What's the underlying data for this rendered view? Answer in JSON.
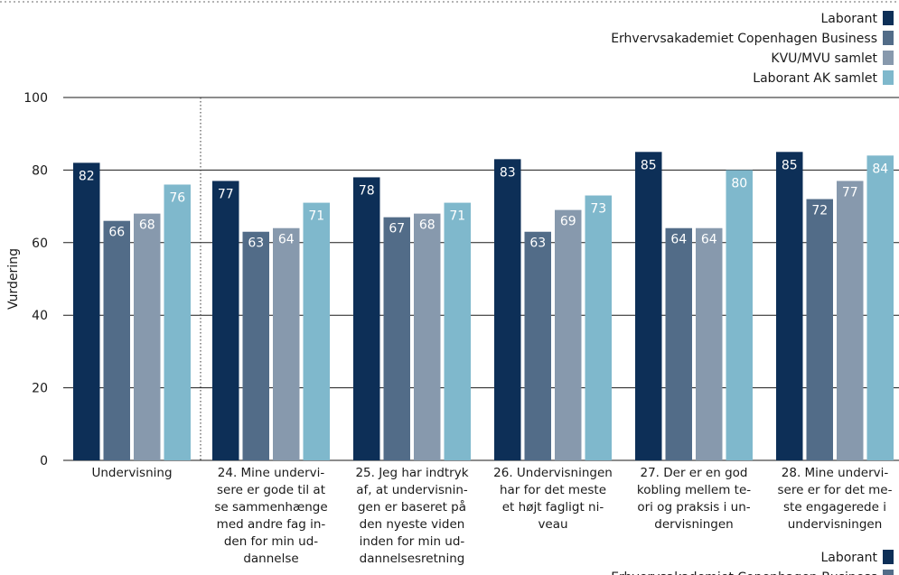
{
  "chart_data": {
    "type": "bar",
    "ylabel": "Vurdering",
    "ylim": [
      0,
      100
    ],
    "yticks": [
      0,
      20,
      40,
      60,
      80,
      100
    ],
    "grid": true,
    "legend_position": "top-right",
    "categories": [
      "Undervisning",
      "24. Mine underviserne er gode til at se sammenhænge med andre fag inden for min uddannelse",
      "25. Jeg har indtryk af, at undervisningen er baseret på den nyeste viden inden for min uddannelsesretning",
      "26. Undervisningen har for det meste et højt fagligt niveau",
      "27. Der er en god kobling mellem teori og praksis i undervisningen",
      "28. Mine underviserne er for det meste engagerede i undervisningen"
    ],
    "category_lines": [
      [
        "Undervisning"
      ],
      [
        "24. Mine undervi-",
        "sere er gode til at",
        "se sammenhænge",
        "med andre fag in-",
        "den for min ud-",
        "dannelse"
      ],
      [
        "25. Jeg har indtryk",
        "af, at undervisnin-",
        "gen er baseret på",
        "den nyeste viden",
        "inden for min ud-",
        "dannelsesretning"
      ],
      [
        "26. Undervisningen",
        "har for det meste",
        "et højt fagligt ni-",
        "veau"
      ],
      [
        "27. Der er en god",
        "kobling mellem te-",
        "ori og praksis i un-",
        "dervisningen"
      ],
      [
        "28. Mine undervi-",
        "sere er for det me-",
        "ste engagerede i",
        "undervisningen"
      ]
    ],
    "series": [
      {
        "name": "Laborant",
        "color": "#0d2f57",
        "label_pos": "top",
        "values": [
          82,
          77,
          78,
          83,
          85,
          85
        ]
      },
      {
        "name": "Erhvervsakademiet Copenhagen Business",
        "color": "#526c88",
        "label_pos": "bottom",
        "values": [
          66,
          63,
          67,
          63,
          64,
          72
        ]
      },
      {
        "name": "KVU/MVU samlet",
        "color": "#8799ad",
        "label_pos": "bottom",
        "values": [
          68,
          64,
          68,
          69,
          64,
          77
        ]
      },
      {
        "name": "Laborant AK samlet",
        "color": "#7fb8cc",
        "label_pos": "top",
        "values": [
          76,
          71,
          71,
          73,
          80,
          84
        ]
      }
    ]
  },
  "footer_legend": {
    "items": [
      "Laborant",
      "Erhvervsakademiet Copenhagen Business"
    ]
  }
}
